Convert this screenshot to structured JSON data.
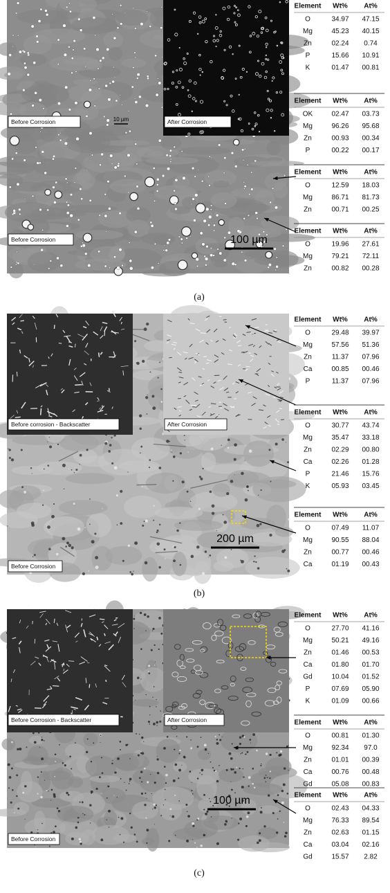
{
  "panels": [
    {
      "caption": "(a)",
      "labels": [
        "Before Corrosion",
        "After Corrosion",
        "Before Corrosion"
      ],
      "scale_bars": [
        "10 µm",
        "100 µm"
      ],
      "tables": [
        {
          "header": [
            "Element",
            "Wt%",
            "At%"
          ],
          "rows": [
            [
              "O",
              "34.97",
              "47.15"
            ],
            [
              "Mg",
              "45.23",
              "40.15"
            ],
            [
              "Zn",
              "02.24",
              "0.74"
            ],
            [
              "P",
              "15.66",
              "10.91"
            ],
            [
              "K",
              "01.47",
              "00.81"
            ]
          ]
        },
        {
          "header": [
            "Element",
            "Wt%",
            "At%"
          ],
          "rows": [
            [
              "OK",
              "02.47",
              "03.73"
            ],
            [
              "Mg",
              "96.26",
              "95.68"
            ],
            [
              "Zn",
              "00.93",
              "00.34"
            ],
            [
              "P",
              "00.22",
              "00.17"
            ]
          ]
        },
        {
          "header": [
            "Element",
            "Wt%",
            "At%"
          ],
          "rows": [
            [
              "O",
              "12.59",
              "18.03"
            ],
            [
              "Mg",
              "86.71",
              "81.73"
            ],
            [
              "Zn",
              "00.71",
              "00.25"
            ]
          ]
        },
        {
          "header": [
            "Element",
            "Wt%",
            "At%"
          ],
          "rows": [
            [
              "O",
              "19.96",
              "27.61"
            ],
            [
              "Mg",
              "79.21",
              "72.11"
            ],
            [
              "Zn",
              "00.82",
              "00.28"
            ]
          ]
        }
      ]
    },
    {
      "caption": "(b)",
      "labels": [
        "Before corrosion - Backscatter",
        "After Corrosion",
        "Before Corrosion"
      ],
      "scale_bars": [
        "200 µm"
      ],
      "tables": [
        {
          "header": [
            "Element",
            "Wt%",
            "At%"
          ],
          "rows": [
            [
              "O",
              "29.48",
              "39.97"
            ],
            [
              "Mg",
              "57.56",
              "51.36"
            ],
            [
              "Zn",
              "11.37",
              "07.96"
            ],
            [
              "Ca",
              "00.85",
              "00.46"
            ],
            [
              "P",
              "11.37",
              "07.96"
            ]
          ]
        },
        {
          "header": [
            "Element",
            "Wt%",
            "At%"
          ],
          "rows": [
            [
              "O",
              "30.77",
              "43.74"
            ],
            [
              "Mg",
              "35.47",
              "33.18"
            ],
            [
              "Zn",
              "02.29",
              "00.80"
            ],
            [
              "Ca",
              "02.26",
              "01.28"
            ],
            [
              "P",
              "21.46",
              "15.76"
            ],
            [
              "K",
              "05.93",
              "03.45"
            ]
          ]
        },
        {
          "header": [
            "Element",
            "Wt%",
            "At%"
          ],
          "rows": [
            [
              "O",
              "07.49",
              "11.07"
            ],
            [
              "Mg",
              "90.55",
              "88.04"
            ],
            [
              "Zn",
              "00.77",
              "00.46"
            ],
            [
              "Ca",
              "01.19",
              "00.43"
            ]
          ]
        }
      ]
    },
    {
      "caption": "(c)",
      "labels": [
        "Before Corrosion - Backscatter",
        "After Corrosion",
        "Before Corrosion"
      ],
      "scale_bars": [
        "100 µm"
      ],
      "tables": [
        {
          "header": [
            "Element",
            "Wt%",
            "At%"
          ],
          "rows": [
            [
              "O",
              "27.70",
              "41.16"
            ],
            [
              "Mg",
              "50.21",
              "49.16"
            ],
            [
              "Zn",
              "01.46",
              "00.53"
            ],
            [
              "Ca",
              "01.80",
              "01.70"
            ],
            [
              "Gd",
              "10.04",
              "01.52"
            ],
            [
              "P",
              "07.69",
              "05.90"
            ],
            [
              "K",
              "01.09",
              "00.66"
            ]
          ]
        },
        {
          "header": [
            "Element",
            "Wt%",
            "At%"
          ],
          "rows": [
            [
              "O",
              "00.81",
              "01.30"
            ],
            [
              "Mg",
              "92.34",
              "97.0"
            ],
            [
              "Zn",
              "01.01",
              "00.39"
            ],
            [
              "Ca",
              "00.76",
              "00.48"
            ],
            [
              "Gd",
              "05.08",
              "00.83"
            ]
          ]
        },
        {
          "header": [
            "Element",
            "Wt%",
            "At%"
          ],
          "rows": [
            [
              "O",
              "02.43",
              "04.33"
            ],
            [
              "Mg",
              "76.33",
              "89.54"
            ],
            [
              "Zn",
              "02.63",
              "01.15"
            ],
            [
              "Ca",
              "03.04",
              "02.16"
            ],
            [
              "Gd",
              "15.57",
              "2.82"
            ]
          ]
        }
      ]
    }
  ]
}
